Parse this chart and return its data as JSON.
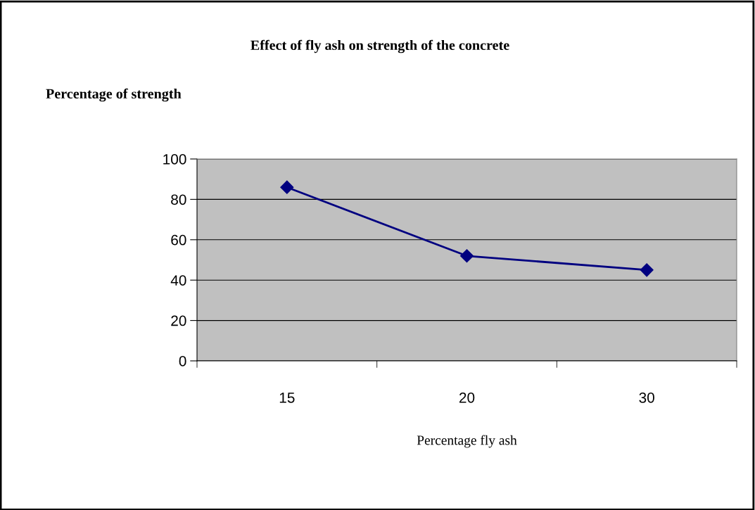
{
  "chart_data": {
    "type": "line",
    "title": "Effect of fly ash on strength of the concrete",
    "ylabel": "Percentage of strength",
    "xlabel": "Percentage fly ash",
    "categories": [
      "15",
      "20",
      "30"
    ],
    "series": [
      {
        "color": "#000080",
        "values": [
          86,
          52,
          45
        ]
      }
    ],
    "ylim": [
      0,
      100
    ],
    "yticks": [
      0,
      20,
      40,
      60,
      80,
      100
    ],
    "grid": "y",
    "marker": "diamond",
    "line_style": "solid",
    "legend": false
  }
}
